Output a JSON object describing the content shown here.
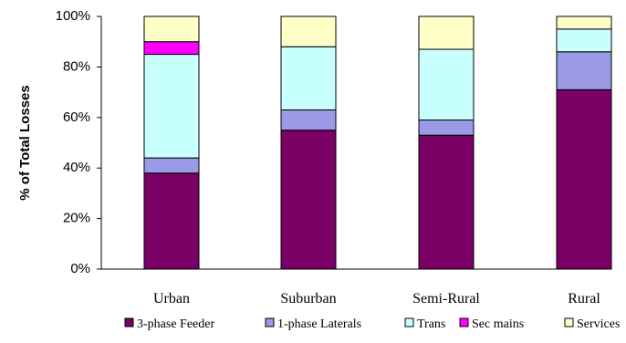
{
  "chart_data": {
    "type": "bar",
    "stacked": true,
    "stack_mode": "percent",
    "ylabel": "% of Total Losses",
    "xlabel": "",
    "ylim": [
      0,
      100
    ],
    "y_ticks": [
      "0%",
      "20%",
      "40%",
      "60%",
      "80%",
      "100%"
    ],
    "categories": [
      "Urban",
      "Suburban",
      "Semi-Rural",
      "Rural"
    ],
    "series": [
      {
        "name": "3-phase Feeder",
        "color": "#7b0066",
        "values": [
          38,
          55,
          53,
          71
        ]
      },
      {
        "name": "1-phase Laterals",
        "color": "#9a9ae6",
        "values": [
          6,
          8,
          6,
          15
        ]
      },
      {
        "name": "Trans",
        "color": "#c8ffff",
        "values": [
          41,
          25,
          28,
          9
        ]
      },
      {
        "name": "Sec mains",
        "color": "#ff00ff",
        "values": [
          5,
          0,
          0,
          0
        ]
      },
      {
        "name": "Services",
        "color": "#ffffc8",
        "values": [
          10,
          12,
          13,
          5
        ]
      }
    ],
    "legend_position": "bottom",
    "grid": false
  }
}
